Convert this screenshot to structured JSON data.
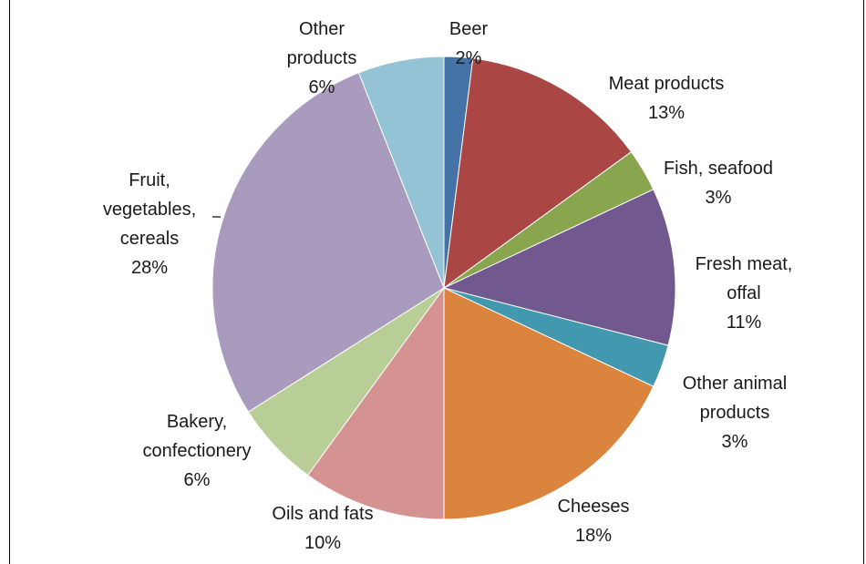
{
  "chart_data": {
    "type": "pie",
    "slices": [
      {
        "label": "Beer",
        "pct_text": "2%",
        "value": 2,
        "color": "#4572a7"
      },
      {
        "label": "Meat products",
        "pct_text": "13%",
        "value": 13,
        "color": "#aa4643"
      },
      {
        "label": "Fish, seafood",
        "pct_text": "3%",
        "value": 3,
        "color": "#89a54e"
      },
      {
        "label": "Fresh meat, offal",
        "pct_text": "11%",
        "value": 11,
        "color": "#71588f"
      },
      {
        "label": "Other animal products",
        "pct_text": "3%",
        "value": 3,
        "color": "#4198af"
      },
      {
        "label": "Cheeses",
        "pct_text": "18%",
        "value": 18,
        "color": "#db843d"
      },
      {
        "label": "Oils and fats",
        "pct_text": "10%",
        "value": 10,
        "color": "#d49290"
      },
      {
        "label": "Bakery, confectionery",
        "pct_text": "6%",
        "value": 6,
        "color": "#b9cd96"
      },
      {
        "label": "Fruit, vegetables, cereals",
        "pct_text": "28%",
        "value": 28,
        "color": "#a99bbd"
      },
      {
        "label": "Other products",
        "pct_text": "6%",
        "value": 6,
        "color": "#93c3d4"
      }
    ]
  }
}
